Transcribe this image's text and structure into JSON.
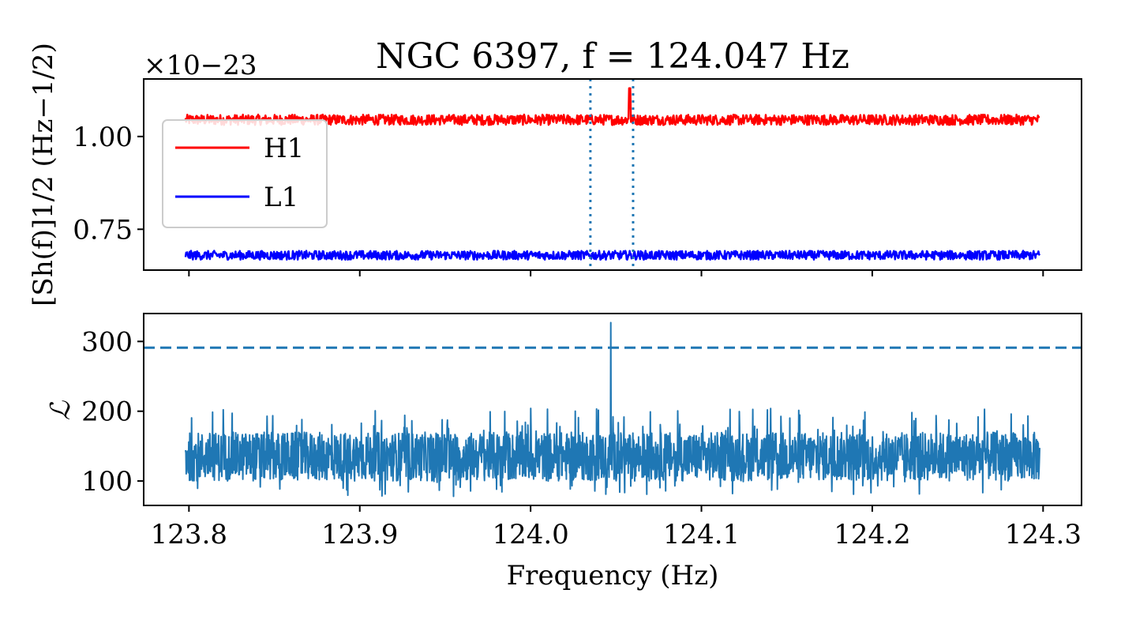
{
  "chart_data": [
    {
      "type": "line",
      "panel": "top",
      "title": "NGC 6397, f = 124.047 Hz",
      "offset_text": "×10−23",
      "ylabel": "[Sh(f)]1/2 (Hz−1/2)",
      "xlabel": "",
      "xlim": [
        123.7735,
        124.3225
      ],
      "ylim": [
        0.64,
        1.155
      ],
      "yticks": [
        {
          "value": 0.75,
          "label": "0.75"
        },
        {
          "value": 1.0,
          "label": "1.00"
        }
      ],
      "xticks": [
        123.8,
        123.9,
        124.0,
        124.1,
        124.2,
        124.3
      ],
      "grid": false,
      "legend_position": "upper-left",
      "series": [
        {
          "name": "H1",
          "color": "#ff0000",
          "x_range": [
            123.798,
            124.298
          ],
          "baseline": 1.045,
          "noise": 0.014,
          "spike": {
            "x": 124.058,
            "y": 1.13
          }
        },
        {
          "name": "L1",
          "color": "#0000ff",
          "x_range": [
            123.798,
            124.298
          ],
          "baseline": 0.68,
          "noise": 0.012
        }
      ],
      "vlines": [
        {
          "x": 124.035,
          "style": "dotted",
          "color": "#1f77b4"
        },
        {
          "x": 124.06,
          "style": "dotted",
          "color": "#1f77b4"
        }
      ]
    },
    {
      "type": "line",
      "panel": "bottom",
      "xlabel": "Frequency (Hz)",
      "ylabel": "ℒ",
      "xlim": [
        123.7735,
        124.3225
      ],
      "ylim": [
        65,
        340
      ],
      "yticks": [
        {
          "value": 100,
          "label": "100"
        },
        {
          "value": 200,
          "label": "200"
        },
        {
          "value": 300,
          "label": "300"
        }
      ],
      "xticks": [
        {
          "value": 123.8,
          "label": "123.8"
        },
        {
          "value": 123.9,
          "label": "123.9"
        },
        {
          "value": 124.0,
          "label": "124.0"
        },
        {
          "value": 124.1,
          "label": "124.1"
        },
        {
          "value": 124.2,
          "label": "124.2"
        },
        {
          "value": 124.3,
          "label": "124.3"
        }
      ],
      "grid": false,
      "series": [
        {
          "color": "#1f77b4",
          "x_range": [
            123.798,
            124.298
          ],
          "typical_range": [
            100,
            170
          ],
          "min": 78,
          "max_noise": 205,
          "spike": {
            "x": 124.047,
            "y": 327
          }
        }
      ],
      "hlines": [
        {
          "y": 291,
          "style": "dashed",
          "color": "#1f77b4"
        }
      ]
    }
  ]
}
